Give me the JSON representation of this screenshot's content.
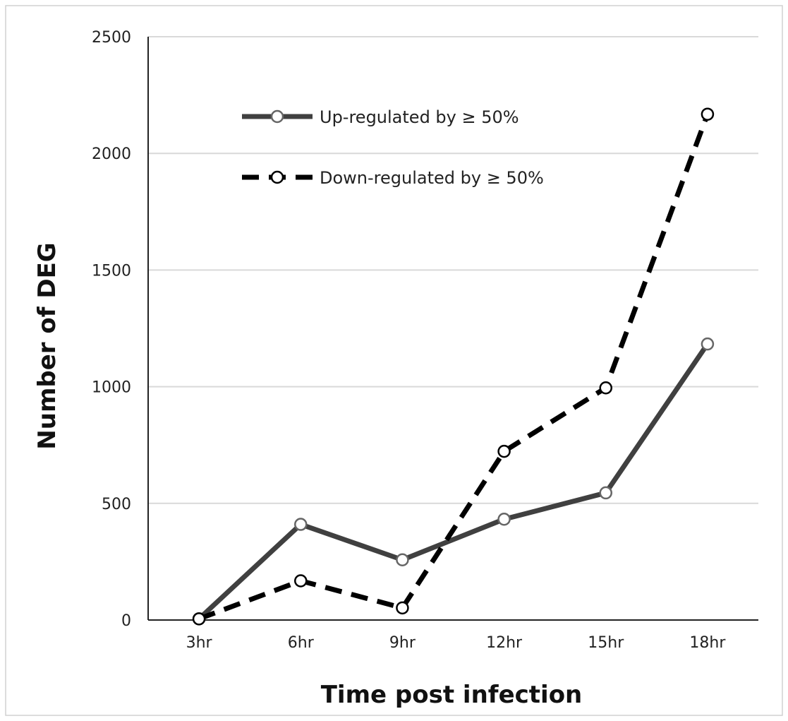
{
  "chart_data": {
    "type": "line",
    "title": "",
    "xlabel": "Time post infection",
    "ylabel": "Number of DEG",
    "categories": [
      "3hr",
      "6hr",
      "9hr",
      "12hr",
      "15hr",
      "18hr"
    ],
    "ylim": [
      0,
      2500
    ],
    "yticks": [
      0,
      500,
      1000,
      1500,
      2000,
      2500
    ],
    "grid": true,
    "legend_position": "top-left",
    "series": [
      {
        "name": "Up-regulated by ≥ 50%",
        "values": [
          5,
          410,
          258,
          432,
          545,
          1183
        ],
        "style": "solid",
        "color": "#404040"
      },
      {
        "name": "Down-regulated by ≥ 50%",
        "values": [
          5,
          168,
          52,
          723,
          995,
          2168
        ],
        "style": "dashed",
        "color": "#000000"
      }
    ],
    "gridline_color": "#d9d9d9",
    "axis_color": "#222222"
  }
}
